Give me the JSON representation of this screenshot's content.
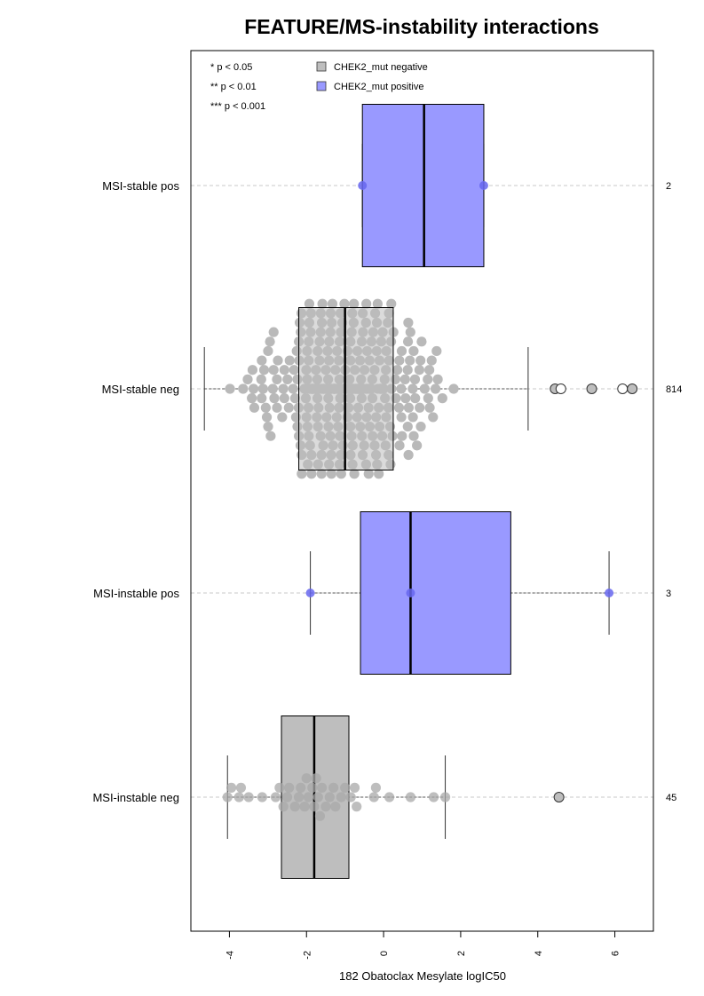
{
  "chart_data": {
    "type": "boxplot",
    "orientation": "horizontal",
    "title": "FEATURE/MS-instability interactions",
    "xlabel": "182 Obatoclax Mesylate logIC50",
    "xlim": [
      -5.0,
      7.0
    ],
    "x_ticks": [
      -4,
      -2,
      0,
      2,
      4,
      6
    ],
    "x_tick_labels": [
      "-4",
      "-2",
      "0",
      "2",
      "4",
      "6"
    ],
    "grid": "dashed horizontal lines at each group",
    "significance_legend": [
      "* p < 0.05",
      "** p < 0.01",
      "*** p < 0.001"
    ],
    "legend": {
      "placement": "top",
      "items": [
        {
          "label": "CHEK2_mut negative",
          "color": "#bebebe"
        },
        {
          "label": "CHEK2_mut positive",
          "color": "#9999ff"
        }
      ]
    },
    "colors": {
      "negative_box": "#bebebe",
      "positive_box": "#9999ff",
      "negative_point": "#a8a8a8",
      "positive_point": "#6666ee"
    },
    "groups": [
      {
        "label": "MSI-stable pos",
        "n": "2",
        "mutation": "positive",
        "whisker_low": -0.55,
        "q1": -0.55,
        "median": 1.05,
        "q3": 2.6,
        "whisker_high": 2.6,
        "points": [
          -0.55,
          2.6
        ],
        "outliers": []
      },
      {
        "label": "MSI-stable neg",
        "n": "814",
        "mutation": "negative",
        "whisker_low": -4.65,
        "q1": -2.2,
        "median": -1.0,
        "q3": 0.25,
        "whisker_high": 3.75,
        "points": [],
        "outliers": [
          4.45,
          4.6,
          5.4,
          6.2,
          6.45
        ]
      },
      {
        "label": "MSI-instable pos",
        "n": "3",
        "mutation": "positive",
        "whisker_low": -1.9,
        "q1": -0.6,
        "median": 0.7,
        "q3": 3.3,
        "whisker_high": 5.85,
        "points": [
          -1.9,
          0.7,
          5.85
        ],
        "outliers": []
      },
      {
        "label": "MSI-instable neg",
        "n": "45",
        "mutation": "negative",
        "whisker_low": -4.05,
        "q1": -2.65,
        "median": -1.8,
        "q3": -0.9,
        "whisker_high": 1.6,
        "points": [
          -4.05,
          -3.95,
          -3.75,
          -3.7,
          -3.5,
          -3.15,
          -2.8,
          -2.7,
          -2.6,
          -2.5,
          -2.45,
          -2.3,
          -2.2,
          -2.15,
          -2.05,
          -2.0,
          -1.95,
          -1.85,
          -1.8,
          -1.75,
          -1.7,
          -1.65,
          -1.6,
          -1.5,
          -1.4,
          -1.3,
          -1.25,
          -1.1,
          -1.0,
          -0.85,
          -0.75,
          -0.7,
          -0.25,
          -0.2,
          0.15,
          0.7,
          1.3,
          1.6
        ],
        "outliers": [
          4.55
        ]
      }
    ]
  }
}
